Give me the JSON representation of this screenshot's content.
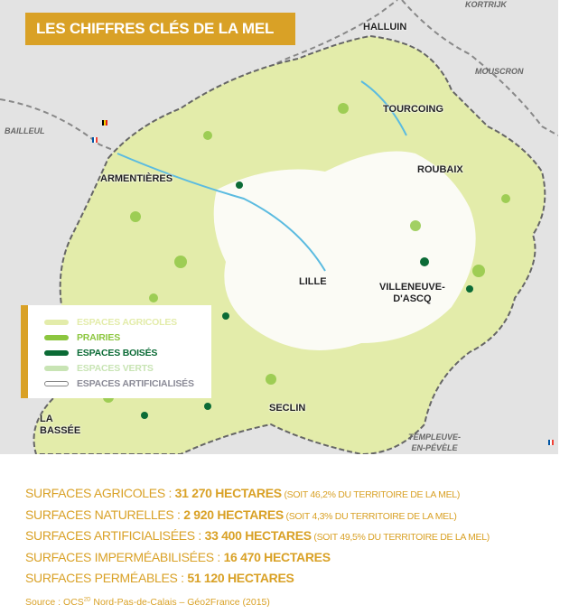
{
  "title": "LES CHIFFRES CLÉS DE LA MEL",
  "cities": {
    "halluin": "HALLUIN",
    "tourcoing": "TOURCOING",
    "roubaix": "ROUBAIX",
    "armentieres": "ARMENTIÈRES",
    "lille": "LILLE",
    "villeneuve1": "VILLENEUVE-",
    "villeneuve2": "D'ASCQ",
    "seclin": "SECLIN",
    "labassee1": "LA",
    "labassee2": "BASSÉE",
    "templeuve1": "TEMPLEUVE-",
    "templeuve2": "EN-PÉVÈLE"
  },
  "foreign": {
    "kortrijk": "KORTRIJK",
    "mouscron": "MOUSCRON",
    "bailleul": "BAILLEUL"
  },
  "legend": [
    {
      "label": "ESPACES AGRICOLES",
      "color": "#e3ecaa"
    },
    {
      "label": "PRAIRIES",
      "color": "#8cc63f"
    },
    {
      "label": "ESPACES BOISÉS",
      "color": "#0b6b36"
    },
    {
      "label": "ESPACES VERTS",
      "color": "#c8e4b4"
    },
    {
      "label": "ESPACES ARTIFICIALISÉS",
      "color": "#ffffff"
    }
  ],
  "stats": [
    {
      "label": "SURFACES AGRICOLES : ",
      "value": "31 270 HECTARES",
      "note": " (SOIT 46,2% DU TERRITOIRE DE LA MEL)"
    },
    {
      "label": "SURFACES NATURELLES : ",
      "value": "2 920 HECTARES",
      "note": " (SOIT 4,3% DU TERRITOIRE DE LA MEL)"
    },
    {
      "label": "SURFACES ARTIFICIALISÉES : ",
      "value": "33 400 HECTARES",
      "note": " (SOIT 49,5% DU TERRITOIRE DE LA MEL)"
    },
    {
      "label": "SURFACES IMPERMÉABILISÉES : ",
      "value": "16 470 HECTARES",
      "note": ""
    },
    {
      "label": "SURFACES PERMÉABLES : ",
      "value": "51 120 HECTARES",
      "note": ""
    }
  ],
  "source": {
    "prefix": "Source : OCS",
    "sup": "2D",
    "suffix": " Nord-Pas-de-Calais – Géo2France (2015)"
  },
  "colors": {
    "accent": "#d9a126"
  }
}
